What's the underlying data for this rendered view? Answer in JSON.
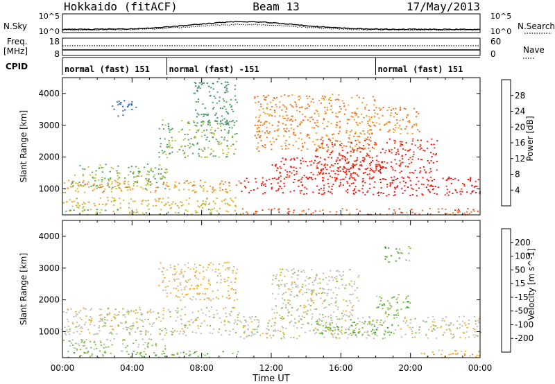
{
  "header": {
    "station": "Hokkaido (fitACF)",
    "beam": "Beam 13",
    "date": "17/May/2013"
  },
  "strip_panels": {
    "noise_left_label": "N.Sky",
    "noise_right_label": "N.Search",
    "noise_left_ticks": [
      "10^5",
      "10^0"
    ],
    "noise_right_ticks": [
      "10^5",
      "10^0"
    ],
    "freq_left_label_1": "Freq.",
    "freq_left_label_2": "[MHz]",
    "freq_left_ticks": [
      "18",
      "8"
    ],
    "nave_label": "Nave",
    "nave_ticks": [
      "60",
      "0"
    ],
    "cpid_label": "CPID",
    "cpid_segments": [
      {
        "label": "normal (fast) 151",
        "start_hour": 0,
        "end_hour": 6
      },
      {
        "label": "normal (fast) -151",
        "start_hour": 6,
        "end_hour": 18
      },
      {
        "label": "normal (fast) 151",
        "start_hour": 18,
        "end_hour": 24
      }
    ]
  },
  "chart_data": [
    {
      "type": "heatmap",
      "quantity": "Power",
      "ylabel": "Slant Range [km]",
      "xlabel": "",
      "x_unit": "hour UT",
      "xlim": [
        0,
        24
      ],
      "ylim": [
        180,
        4500
      ],
      "yticks": [
        1000,
        2000,
        3000,
        4000
      ],
      "colorbar_label": "Power [dB]",
      "colorbar_ticks": [
        4,
        8,
        12,
        16,
        20,
        24,
        28
      ],
      "color_scale": {
        "min": 0,
        "max": 32,
        "colors": [
          "#1e2bd8",
          "#2a5fd0",
          "#3a8a7a",
          "#4ea060",
          "#b8c030",
          "#f0a020",
          "#f07020",
          "#ee3010",
          "#e81010"
        ]
      },
      "echo_regions": [
        {
          "x": [
            0.5,
            6.0
          ],
          "y": [
            1000,
            1800
          ],
          "value": 14
        },
        {
          "x": [
            0.0,
            10.2
          ],
          "y": [
            900,
            1300
          ],
          "value": 20
        },
        {
          "x": [
            0.0,
            10.2
          ],
          "y": [
            400,
            750
          ],
          "value": 18
        },
        {
          "x": [
            0.0,
            10.2
          ],
          "y": [
            200,
            380
          ],
          "value": 16
        },
        {
          "x": [
            2.8,
            4.2
          ],
          "y": [
            3300,
            3800
          ],
          "value": 6
        },
        {
          "x": [
            5.5,
            10.0
          ],
          "y": [
            2000,
            3200
          ],
          "value": 14
        },
        {
          "x": [
            7.5,
            10.0
          ],
          "y": [
            3000,
            4400
          ],
          "value": 10
        },
        {
          "x": [
            10.2,
            24.0
          ],
          "y": [
            800,
            1400
          ],
          "value": 30
        },
        {
          "x": [
            12.0,
            18.5
          ],
          "y": [
            1300,
            2000
          ],
          "value": 28
        },
        {
          "x": [
            14.5,
            21.5
          ],
          "y": [
            1500,
            2600
          ],
          "value": 28
        },
        {
          "x": [
            11.0,
            18.0
          ],
          "y": [
            2200,
            4000
          ],
          "value": 22
        },
        {
          "x": [
            18.0,
            20.5
          ],
          "y": [
            2700,
            3600
          ],
          "value": 22
        },
        {
          "x": [
            10.2,
            24.0
          ],
          "y": [
            200,
            400
          ],
          "value": 24
        }
      ]
    },
    {
      "type": "heatmap",
      "quantity": "Velocity",
      "ylabel": "Slant Range [km]",
      "xlabel": "Time UT",
      "x_unit": "hour UT",
      "xlim": [
        0,
        24
      ],
      "ylim": [
        180,
        4500
      ],
      "yticks": [
        1000,
        2000,
        3000,
        4000
      ],
      "xticks": [
        "00:00",
        "04:00",
        "08:00",
        "12:00",
        "16:00",
        "20:00",
        "00:00"
      ],
      "colorbar_label": "Velocity [m s^-1]",
      "colorbar_ticks": [
        "200",
        "100",
        "50",
        "15",
        "-15",
        "-50",
        "-100",
        "-200"
      ],
      "color_scale": {
        "min": -250,
        "max": 250,
        "colors": [
          "#e01010",
          "#f04010",
          "#f08020",
          "#f0b020",
          "#bdbdb5",
          "#7cc040",
          "#3a9a40",
          "#2a8080",
          "#1e2bd8"
        ]
      },
      "echo_regions": [
        {
          "x": [
            0.0,
            10.2
          ],
          "y": [
            900,
            1800
          ],
          "value": 0
        },
        {
          "x": [
            0.0,
            6.0
          ],
          "y": [
            400,
            800
          ],
          "value": 30
        },
        {
          "x": [
            0.0,
            10.2
          ],
          "y": [
            200,
            400
          ],
          "value": 60
        },
        {
          "x": [
            5.5,
            10.0
          ],
          "y": [
            2000,
            3200
          ],
          "value": -40
        },
        {
          "x": [
            10.2,
            24.0
          ],
          "y": [
            800,
            1500
          ],
          "value": 0
        },
        {
          "x": [
            14.5,
            19.0
          ],
          "y": [
            900,
            1400
          ],
          "value": 60
        },
        {
          "x": [
            18.0,
            20.0
          ],
          "y": [
            1500,
            2200
          ],
          "value": 60
        },
        {
          "x": [
            18.5,
            20.0
          ],
          "y": [
            3200,
            3700
          ],
          "value": 70
        },
        {
          "x": [
            12.0,
            17.0
          ],
          "y": [
            1500,
            3000
          ],
          "value": 0
        },
        {
          "x": [
            20.5,
            24.0
          ],
          "y": [
            200,
            450
          ],
          "value": -60
        }
      ]
    }
  ]
}
